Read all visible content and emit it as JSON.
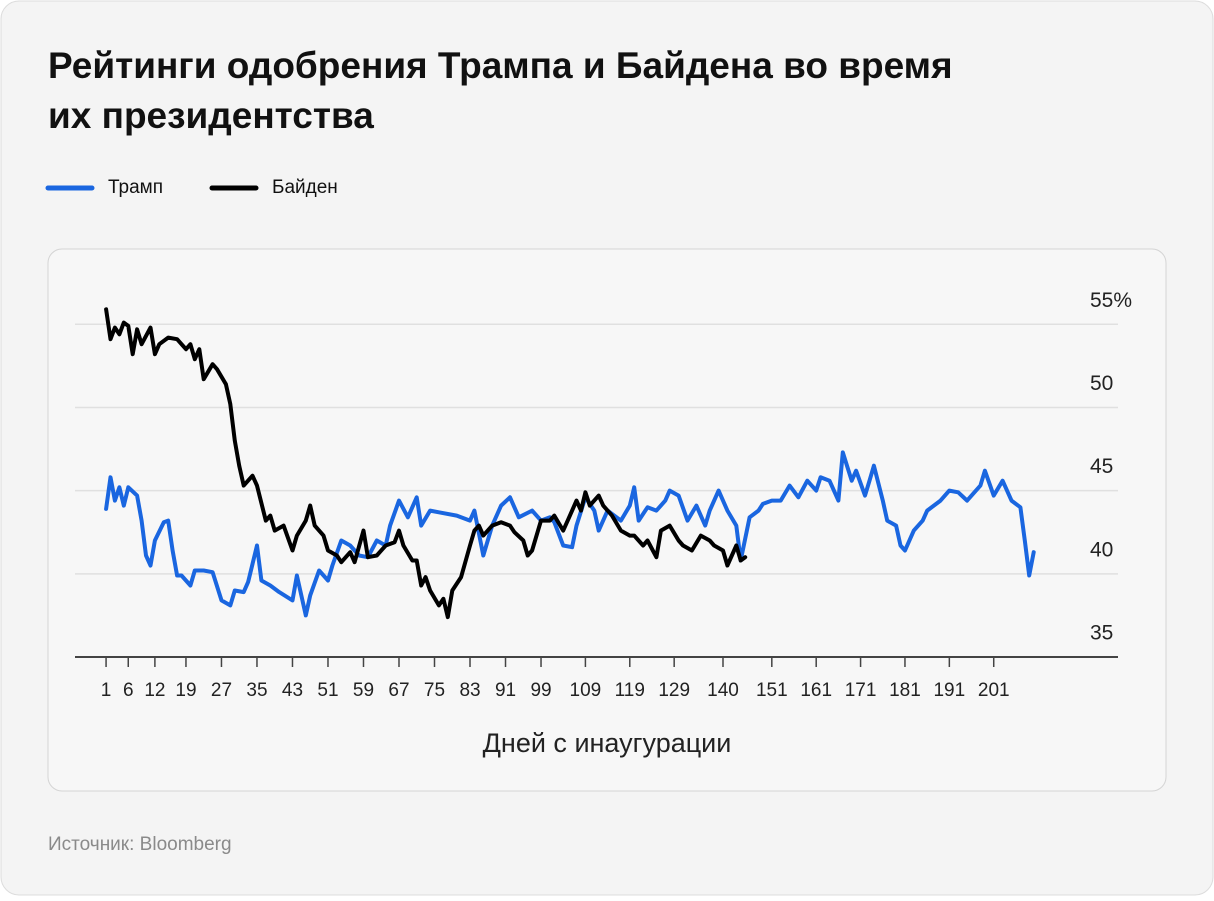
{
  "chart_data": {
    "type": "line",
    "title": "Рейтинги одобрения Трампа и Байдена во время их президентства",
    "x_label": "Дней с инаугурации",
    "xlim": [
      -6,
      229
    ],
    "xticks": [
      1,
      6,
      12,
      19,
      27,
      35,
      43,
      51,
      59,
      67,
      75,
      83,
      91,
      99,
      109,
      119,
      129,
      140,
      151,
      161,
      171,
      181,
      191,
      201
    ],
    "ylim": [
      35,
      57
    ],
    "yticks": [
      35,
      40,
      45,
      50,
      {
        "value": 55,
        "label": "55%"
      }
    ],
    "grid": true,
    "legend": "top-left",
    "series": [
      {
        "name": "Трамп",
        "color": "#1a66e0",
        "x": [
          1,
          2,
          3,
          4,
          5,
          6,
          8,
          9,
          10,
          11,
          12,
          14,
          15,
          16,
          17,
          18,
          20,
          21,
          23,
          25,
          27,
          29,
          30,
          32,
          33,
          35,
          36,
          38,
          40,
          43,
          44,
          46,
          47,
          49,
          51,
          52,
          54,
          56,
          58,
          60,
          62,
          64,
          65,
          67,
          69,
          71,
          72,
          74,
          76,
          80,
          83,
          84,
          86,
          88,
          90,
          92,
          94,
          97,
          99,
          101,
          102,
          104,
          106,
          107,
          109,
          111,
          112,
          114,
          117,
          119,
          120,
          121,
          123,
          125,
          127,
          128,
          130,
          132,
          134,
          136,
          137,
          139,
          141,
          143,
          144,
          146,
          148,
          149,
          151,
          153,
          155,
          157,
          159,
          161,
          162,
          164,
          166,
          167,
          169,
          170,
          172,
          173,
          174,
          176,
          177,
          179,
          180,
          181,
          183,
          185,
          186,
          189,
          191,
          193,
          195,
          198,
          199,
          201,
          203,
          205,
          207,
          208,
          209,
          210
        ],
        "values": [
          43.9,
          45.8,
          44.4,
          45.2,
          44.1,
          45.2,
          44.7,
          43.2,
          41.1,
          40.5,
          42.0,
          43.1,
          43.2,
          41.4,
          39.9,
          39.9,
          39.3,
          40.2,
          40.2,
          40.1,
          38.4,
          38.1,
          39.0,
          38.9,
          39.5,
          41.7,
          39.6,
          39.3,
          38.9,
          38.4,
          39.9,
          37.5,
          38.7,
          40.2,
          39.6,
          40.5,
          42.0,
          41.7,
          41.1,
          41.0,
          42.0,
          41.7,
          42.9,
          44.4,
          43.4,
          44.6,
          42.9,
          43.8,
          43.7,
          43.5,
          43.2,
          43.8,
          41.1,
          42.9,
          44.1,
          44.6,
          43.4,
          43.8,
          43.2,
          43.4,
          43.1,
          41.7,
          41.6,
          42.9,
          44.6,
          43.8,
          42.6,
          43.8,
          43.2,
          44.1,
          45.2,
          43.2,
          44.0,
          43.8,
          44.4,
          45.0,
          44.7,
          43.2,
          44.1,
          42.9,
          43.8,
          45.0,
          43.8,
          42.9,
          40.8,
          43.4,
          43.8,
          44.2,
          44.4,
          44.4,
          45.3,
          44.6,
          45.6,
          45.0,
          45.8,
          45.6,
          44.4,
          47.3,
          45.6,
          46.2,
          44.7,
          45.6,
          46.5,
          44.4,
          43.2,
          42.9,
          41.7,
          41.4,
          42.6,
          43.2,
          43.8,
          44.4,
          45.0,
          44.9,
          44.4,
          45.3,
          46.2,
          44.7,
          45.6,
          44.4,
          44.0,
          42.0,
          39.9,
          41.3
        ]
      },
      {
        "name": "Байден",
        "color": "#000000",
        "x": [
          1,
          2,
          3,
          4,
          5,
          6,
          7,
          8,
          9,
          11,
          12,
          13,
          15,
          17,
          19,
          20,
          21,
          22,
          23,
          25,
          26,
          28,
          29,
          30,
          31,
          32,
          34,
          35,
          37,
          38,
          39,
          41,
          43,
          44,
          46,
          47,
          48,
          50,
          51,
          53,
          54,
          56,
          57,
          59,
          60,
          62,
          64,
          66,
          67,
          68,
          70,
          71,
          72,
          73,
          74,
          76,
          77,
          78,
          79,
          81,
          83,
          84,
          85,
          86,
          88,
          90,
          92,
          93,
          95,
          96,
          97,
          99,
          101,
          102,
          104,
          105,
          107,
          108,
          109,
          110,
          112,
          113,
          115,
          117,
          119,
          120,
          122,
          123,
          125,
          126,
          128,
          130,
          131,
          133,
          135,
          137,
          138,
          140,
          141,
          143,
          144,
          145
        ],
        "values": [
          55.9,
          54.1,
          54.8,
          54.4,
          55.1,
          54.9,
          53.2,
          54.7,
          53.8,
          54.8,
          53.2,
          53.8,
          54.2,
          54.1,
          53.5,
          53.8,
          52.9,
          53.5,
          51.7,
          52.6,
          52.3,
          51.4,
          50.2,
          48.0,
          46.5,
          45.3,
          45.9,
          45.3,
          43.2,
          43.5,
          42.6,
          42.9,
          41.4,
          42.3,
          43.2,
          44.1,
          42.9,
          42.3,
          41.4,
          41.1,
          40.7,
          41.3,
          40.7,
          42.6,
          41.0,
          41.1,
          41.7,
          41.9,
          42.6,
          41.7,
          40.8,
          40.8,
          39.3,
          39.8,
          39.0,
          38.1,
          38.5,
          37.4,
          39.0,
          39.8,
          41.7,
          42.6,
          42.9,
          42.3,
          42.9,
          43.1,
          42.9,
          42.5,
          42.0,
          41.1,
          41.4,
          43.2,
          43.2,
          43.5,
          42.6,
          43.2,
          44.4,
          43.8,
          44.9,
          44.1,
          44.7,
          44.1,
          43.5,
          42.6,
          42.3,
          42.3,
          41.7,
          42.0,
          41.0,
          42.6,
          42.9,
          42.0,
          41.7,
          41.4,
          42.3,
          42.0,
          41.7,
          41.4,
          40.5,
          41.7,
          40.8,
          41.0
        ]
      }
    ]
  },
  "source": "Источник: Bloomberg"
}
